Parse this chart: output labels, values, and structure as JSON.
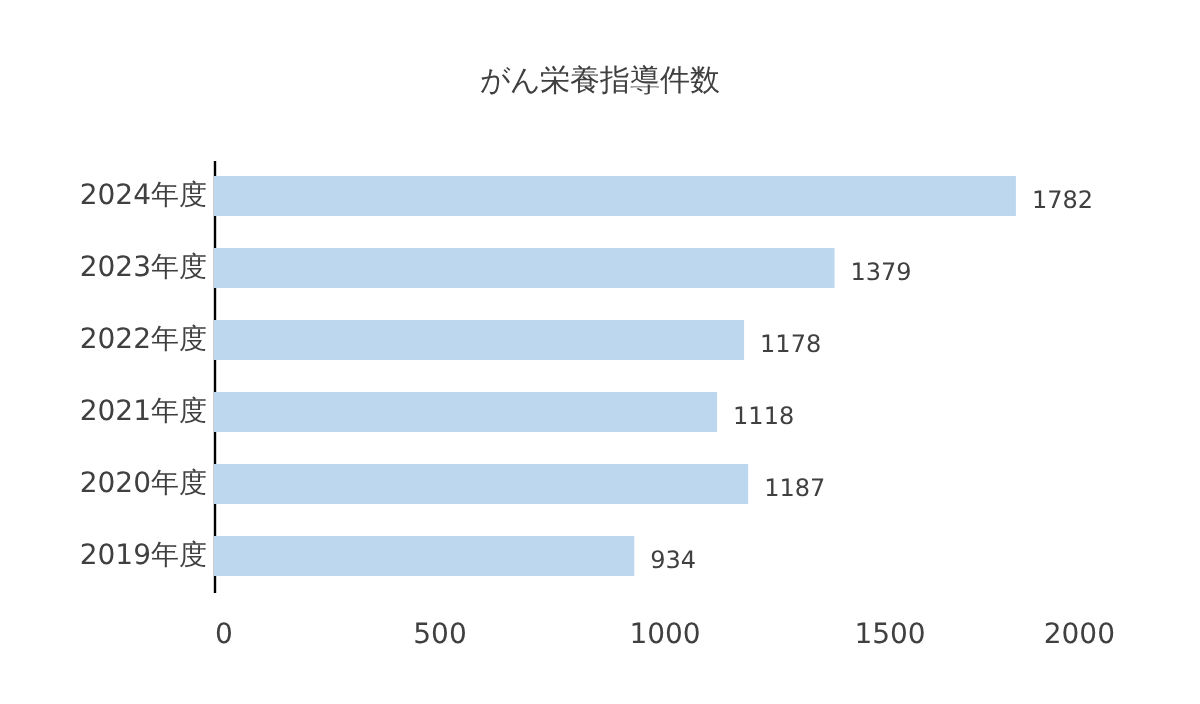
{
  "chart_data": {
    "type": "bar",
    "orientation": "horizontal",
    "title": "がん栄養指導件数",
    "categories": [
      "2024年度",
      "2023年度",
      "2022年度",
      "2021年度",
      "2020年度",
      "2019年度"
    ],
    "values": [
      1782,
      1379,
      1178,
      1118,
      1187,
      934
    ],
    "color": "#bdd7ee",
    "xlim": [
      0,
      2000
    ],
    "xticks": [
      0,
      500,
      1000,
      1500,
      2000
    ],
    "data_labels": true,
    "grid": false
  }
}
